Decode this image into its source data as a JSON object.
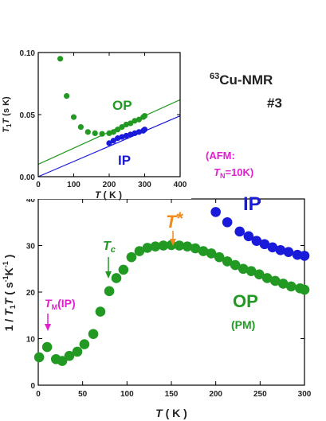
{
  "colors": {
    "op": "#229922",
    "ip": "#1a1adb",
    "tstar": "#f08c1e",
    "afm": "#e020d0",
    "tc": "#229922",
    "axis": "#000000"
  },
  "chart_data": [
    {
      "type": "scatter",
      "xlabel": "T ( K )",
      "ylabel": "1 / T1T ( s-1K-1 )",
      "ylabel_parts": [
        "1 / ",
        "T",
        "1",
        "T",
        " ( s",
        "-1",
        "K",
        "-1",
        " )"
      ],
      "xlabel_parts": [
        "T",
        " ( K )"
      ],
      "xlim": [
        0,
        300
      ],
      "ylim": [
        0,
        40
      ],
      "xticks": [
        0,
        50,
        100,
        150,
        200,
        250,
        300
      ],
      "yticks": [
        0,
        10,
        20,
        30,
        40
      ],
      "series": [
        {
          "name": "OP",
          "color_key": "op",
          "x": [
            1,
            10,
            20,
            27,
            35,
            44,
            52,
            62,
            70,
            80,
            88,
            96,
            105,
            114,
            123,
            132,
            141,
            150,
            159,
            168,
            177,
            186,
            195,
            204,
            213,
            222,
            231,
            240,
            249,
            258,
            267,
            276,
            285,
            295,
            300
          ],
          "y": [
            6,
            8.2,
            5.6,
            5.2,
            6.3,
            7.2,
            8.8,
            11,
            15.8,
            20.2,
            23,
            24.8,
            27.5,
            28.8,
            29.5,
            29.8,
            30,
            30.1,
            30,
            29.8,
            29.4,
            28.8,
            28.3,
            27.5,
            26.6,
            25.8,
            25,
            24.5,
            23.8,
            23,
            22.4,
            21.8,
            21.2,
            20.8,
            20.5
          ]
        },
        {
          "name": "IP",
          "color_key": "ip",
          "x": [
            200,
            213,
            227,
            237,
            246,
            255,
            264,
            273,
            282,
            292,
            300
          ],
          "y": [
            37.2,
            35,
            33,
            32,
            31,
            30.3,
            29.6,
            29,
            28.6,
            28,
            27.8
          ]
        }
      ],
      "annotations": {
        "op_label": "OP",
        "pm_label": "(PM)",
        "ip_label": "IP",
        "afm_line1": "(AFM:",
        "afm_line2_parts": [
          "T",
          "N",
          "=10K)"
        ],
        "tstar_parts": [
          "T",
          "*"
        ],
        "tc_parts": [
          "T",
          "c"
        ],
        "tm_parts": [
          "T",
          "M",
          "(IP)"
        ],
        "tstar_x": 150,
        "tc_x": 80,
        "tm_x": 10
      }
    },
    {
      "type": "scatter",
      "xlabel_parts": [
        "T",
        " ( K )"
      ],
      "ylabel_parts": [
        "T",
        "1",
        "T",
        " (s K)"
      ],
      "xlim": [
        0,
        400
      ],
      "ylim": [
        0,
        0.1
      ],
      "xticks": [
        0,
        100,
        200,
        300,
        400
      ],
      "yticks": [
        0,
        0.05,
        0.1
      ],
      "ytick_labels": [
        "0.00",
        "0.05",
        "0.10"
      ],
      "series": [
        {
          "name": "OP",
          "color_key": "op",
          "x": [
            62,
            80,
            100,
            120,
            140,
            160,
            180,
            200,
            212,
            224,
            236,
            248,
            260,
            272,
            284,
            296,
            300
          ],
          "y": [
            0.095,
            0.065,
            0.048,
            0.04,
            0.036,
            0.035,
            0.0345,
            0.035,
            0.036,
            0.038,
            0.04,
            0.042,
            0.043,
            0.045,
            0.046,
            0.048,
            0.049
          ]
        },
        {
          "name": "IP",
          "color_key": "ip",
          "x": [
            200,
            212,
            224,
            236,
            248,
            260,
            272,
            284,
            296,
            300
          ],
          "y": [
            0.027,
            0.029,
            0.031,
            0.032,
            0.033,
            0.034,
            0.035,
            0.036,
            0.037,
            0.038
          ]
        }
      ],
      "fit_lines": [
        {
          "color_key": "op",
          "from": [
            0,
            0.01
          ],
          "to": [
            400,
            0.062
          ]
        },
        {
          "color_key": "ip",
          "from": [
            0,
            0.0
          ],
          "to": [
            400,
            0.049
          ]
        }
      ],
      "annotations": {
        "op_label": "OP",
        "ip_label": "IP"
      }
    }
  ],
  "nmr_label": {
    "sup": "63",
    "text": "Cu-NMR",
    "sample": "#3"
  }
}
